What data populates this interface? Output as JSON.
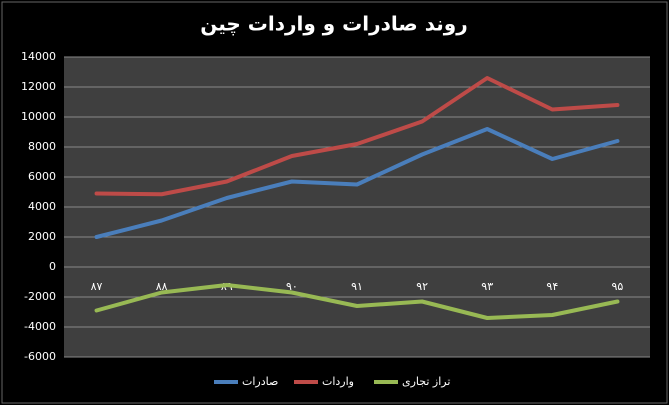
{
  "chart_data": {
    "type": "line",
    "title": "روند صادرات و واردات چین",
    "categories": [
      "۸۷",
      "۸۸",
      "۸۹",
      "۹۰",
      "۹۱",
      "۹۲",
      "۹۳",
      "۹۴",
      "۹۵"
    ],
    "series": [
      {
        "name": "صادرات",
        "color": "#4a7ebb",
        "values": [
          2000,
          3100,
          4600,
          5700,
          5500,
          7500,
          9200,
          7200,
          8400
        ]
      },
      {
        "name": "واردات",
        "color": "#be4b48",
        "values": [
          4900,
          4850,
          5700,
          7400,
          8200,
          9700,
          12600,
          10500,
          10800
        ]
      },
      {
        "name": "تراز تجاری",
        "color": "#98b954",
        "values": [
          -2900,
          -1700,
          -1200,
          -1700,
          -2600,
          -2300,
          -3400,
          -3200,
          -2300
        ]
      }
    ],
    "ylim": [
      -6000,
      14000
    ],
    "yticks": [
      -6000,
      -4000,
      -2000,
      0,
      2000,
      4000,
      6000,
      8000,
      10000,
      12000,
      14000
    ],
    "grid": true,
    "legend": "bottom"
  }
}
